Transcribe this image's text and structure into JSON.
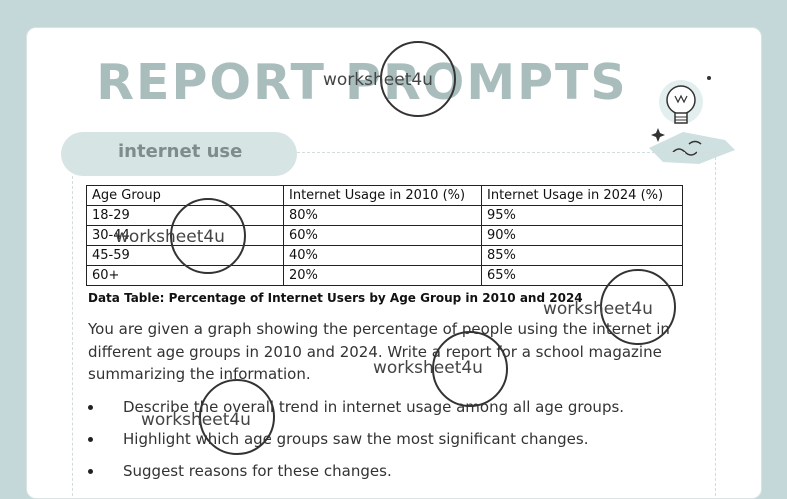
{
  "header": {
    "title": "REPORT PROMPTS"
  },
  "section": {
    "label": "internet use"
  },
  "table": {
    "columns": [
      "Age Group",
      "Internet Usage in 2010 (%)",
      "Internet Usage in 2024 (%)"
    ],
    "rows": [
      [
        "18-29",
        "80%",
        "95%"
      ],
      [
        "30-44",
        "60%",
        "90%"
      ],
      [
        "45-59",
        "40%",
        "85%"
      ],
      [
        "60+",
        "20%",
        "65%"
      ]
    ],
    "caption": "Data Table: Percentage of Internet Users by Age Group in 2010 and 2024"
  },
  "prompt": {
    "text": "You are given a graph showing the percentage of people using the internet in different age groups in 2010 and 2024. Write a report for a school magazine summarizing the information.",
    "bullets": [
      "Describe the overall trend in internet usage among all age groups.",
      "Highlight which age groups saw the most significant changes.",
      "Suggest reasons for these changes."
    ]
  },
  "watermark": {
    "text": "worksheet4u"
  },
  "icons": {
    "illustration": "lightbulb-map-icon"
  },
  "colors": {
    "background": "#c5d8d9",
    "title": "#a9bdbd",
    "pill": "#d6e4e4"
  }
}
